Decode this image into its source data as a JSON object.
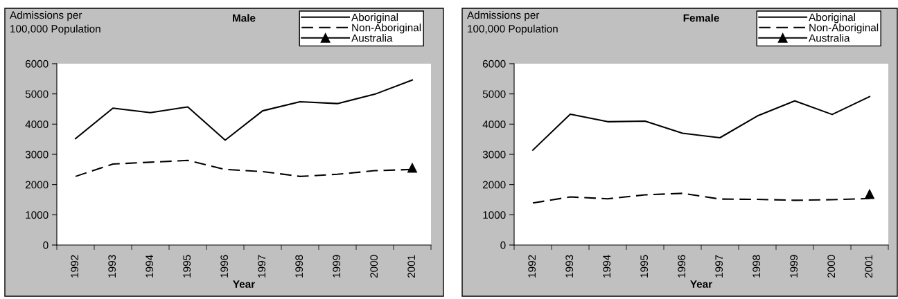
{
  "chart_data": [
    {
      "type": "line",
      "title": "Male",
      "ylabel": "Admissions per\n100,000 Population",
      "xlabel": "Year",
      "categories": [
        "1992",
        "1993",
        "1994",
        "1995",
        "1996",
        "1997",
        "1998",
        "1999",
        "2000",
        "2001"
      ],
      "ylim": [
        0,
        6000
      ],
      "yticks": [
        0,
        1000,
        2000,
        3000,
        4000,
        5000,
        6000
      ],
      "grid": false,
      "legend": "top right",
      "series": [
        {
          "name": "Aboriginal",
          "color": "#000000",
          "line_style": "solid",
          "marker": "none",
          "values": [
            3520,
            4530,
            4380,
            4570,
            3470,
            4440,
            4740,
            4680,
            4990,
            5460
          ]
        },
        {
          "name": "Non-Aboriginal",
          "color": "#000000",
          "line_style": "dashed",
          "marker": "none",
          "values": [
            2270,
            2680,
            2740,
            2800,
            2500,
            2430,
            2270,
            2340,
            2460,
            2500
          ]
        },
        {
          "name": "Australia",
          "color": "#000000",
          "line_style": "solid",
          "marker": "triangle",
          "values": [
            null,
            null,
            null,
            null,
            null,
            null,
            null,
            null,
            null,
            2550
          ]
        }
      ]
    },
    {
      "type": "line",
      "title": "Female",
      "ylabel": "Admissions per\n100,000 Population",
      "xlabel": "Year",
      "categories": [
        "1992",
        "1993",
        "1994",
        "1995",
        "1996",
        "1997",
        "1998",
        "1999",
        "2000",
        "2001"
      ],
      "ylim": [
        0,
        6000
      ],
      "yticks": [
        0,
        1000,
        2000,
        3000,
        4000,
        5000,
        6000
      ],
      "grid": false,
      "legend": "top right",
      "series": [
        {
          "name": "Aboriginal",
          "color": "#000000",
          "line_style": "solid",
          "marker": "none",
          "values": [
            3140,
            4330,
            4080,
            4100,
            3700,
            3550,
            4270,
            4770,
            4320,
            4910
          ]
        },
        {
          "name": "Non-Aboriginal",
          "color": "#000000",
          "line_style": "dashed",
          "marker": "none",
          "values": [
            1390,
            1590,
            1530,
            1660,
            1710,
            1520,
            1510,
            1480,
            1500,
            1540
          ]
        },
        {
          "name": "Australia",
          "color": "#000000",
          "line_style": "solid",
          "marker": "triangle",
          "values": [
            null,
            null,
            null,
            null,
            null,
            null,
            null,
            null,
            null,
            1680
          ]
        }
      ]
    }
  ]
}
